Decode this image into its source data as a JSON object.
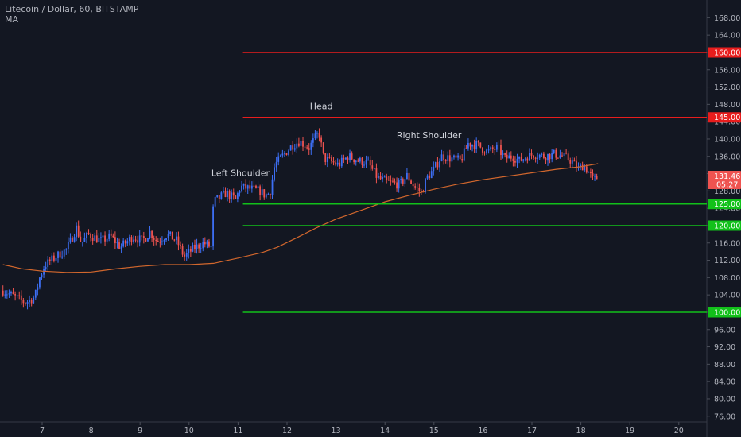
{
  "legend": {
    "symbol": "Litecoin / Dollar, 60, BITSTAMP",
    "indicator": "MA"
  },
  "chart_data": {
    "type": "candlestick",
    "ylim": [
      74,
      171
    ],
    "y_ticks": [
      "76.00",
      "80.00",
      "84.00",
      "88.00",
      "92.00",
      "96.00",
      "100.00",
      "104.00",
      "108.00",
      "112.00",
      "116.00",
      "120.00",
      "124.00",
      "128.00",
      "132.00",
      "136.00",
      "140.00",
      "144.00",
      "148.00",
      "152.00",
      "156.00",
      "160.00",
      "164.00",
      "168.00"
    ],
    "x_days": [
      7,
      8,
      9,
      10,
      11,
      12,
      13,
      14,
      15,
      16,
      17,
      18,
      19,
      20
    ],
    "x_ticks": [
      "7",
      "8",
      "9",
      "10",
      "11",
      "12",
      "13",
      "14",
      "15",
      "16",
      "17",
      "18",
      "19",
      "20"
    ],
    "x_range": [
      6.2,
      20.45
    ],
    "price_path": [
      [
        6.2,
        105
      ],
      [
        6.45,
        103.5
      ],
      [
        6.65,
        102.2
      ],
      [
        6.85,
        103.5
      ],
      [
        6.95,
        108
      ],
      [
        7.05,
        110.8
      ],
      [
        7.3,
        113
      ],
      [
        7.5,
        114.5
      ],
      [
        7.7,
        119.5
      ],
      [
        7.8,
        116
      ],
      [
        7.95,
        118
      ],
      [
        8.2,
        116.5
      ],
      [
        8.4,
        117.5
      ],
      [
        8.6,
        115
      ],
      [
        8.85,
        117.5
      ],
      [
        9.05,
        116.5
      ],
      [
        9.2,
        118.5
      ],
      [
        9.35,
        116.3
      ],
      [
        9.55,
        118
      ],
      [
        9.75,
        116.5
      ],
      [
        9.9,
        112.8
      ],
      [
        10.1,
        114.8
      ],
      [
        10.3,
        116
      ],
      [
        10.45,
        115
      ],
      [
        10.5,
        125.5
      ],
      [
        10.75,
        127.5
      ],
      [
        10.95,
        126
      ],
      [
        11.05,
        129
      ],
      [
        11.25,
        128.5
      ],
      [
        11.45,
        128
      ],
      [
        11.55,
        127
      ],
      [
        11.65,
        127.5
      ],
      [
        11.75,
        134
      ],
      [
        11.9,
        136
      ],
      [
        12.1,
        138.5
      ],
      [
        12.25,
        139.5
      ],
      [
        12.45,
        138
      ],
      [
        12.65,
        141.5
      ],
      [
        12.75,
        135.5
      ],
      [
        12.85,
        135
      ],
      [
        13.05,
        134
      ],
      [
        13.25,
        136
      ],
      [
        13.45,
        135
      ],
      [
        13.65,
        134.5
      ],
      [
        13.85,
        131
      ],
      [
        14.05,
        130
      ],
      [
        14.3,
        129.5
      ],
      [
        14.45,
        131.5
      ],
      [
        14.6,
        129
      ],
      [
        14.75,
        127.5
      ],
      [
        14.85,
        131
      ],
      [
        15.0,
        133
      ],
      [
        15.15,
        136
      ],
      [
        15.35,
        135.5
      ],
      [
        15.55,
        135
      ],
      [
        15.7,
        139
      ],
      [
        15.9,
        138.5
      ],
      [
        16.1,
        137
      ],
      [
        16.3,
        138
      ],
      [
        16.45,
        135.5
      ],
      [
        16.6,
        136
      ],
      [
        16.75,
        135
      ],
      [
        16.9,
        136
      ],
      [
        17.05,
        136.5
      ],
      [
        17.25,
        136
      ],
      [
        17.45,
        136.5
      ],
      [
        17.65,
        136
      ],
      [
        17.8,
        135
      ],
      [
        17.95,
        133
      ],
      [
        18.05,
        134
      ],
      [
        18.15,
        132.5
      ],
      [
        18.25,
        130.5
      ],
      [
        18.35,
        131.2
      ]
    ],
    "ma_path": [
      [
        6.2,
        111
      ],
      [
        6.6,
        110
      ],
      [
        7.0,
        109.5
      ],
      [
        7.5,
        109.2
      ],
      [
        8.0,
        109.3
      ],
      [
        8.5,
        110
      ],
      [
        9.0,
        110.6
      ],
      [
        9.5,
        111
      ],
      [
        10.0,
        111
      ],
      [
        10.5,
        111.3
      ],
      [
        11.0,
        112.5
      ],
      [
        11.5,
        113.8
      ],
      [
        11.8,
        115
      ],
      [
        12.2,
        117.2
      ],
      [
        12.6,
        119.5
      ],
      [
        13.0,
        121.5
      ],
      [
        13.5,
        123.5
      ],
      [
        14.0,
        125.5
      ],
      [
        14.5,
        127
      ],
      [
        15.0,
        128.4
      ],
      [
        15.5,
        129.6
      ],
      [
        16.0,
        130.6
      ],
      [
        16.5,
        131.4
      ],
      [
        17.0,
        132.2
      ],
      [
        17.5,
        133
      ],
      [
        18.0,
        133.6
      ],
      [
        18.35,
        134.3
      ]
    ],
    "horizontal_lines": [
      {
        "price": 160,
        "label": "160.00",
        "color": "#e81d1d",
        "x_start": 11.1
      },
      {
        "price": 145,
        "label": "145.00",
        "color": "#e81d1d",
        "x_start": 11.1
      },
      {
        "price": 125,
        "label": "125.00",
        "color": "#12c11a",
        "x_start": 11.1
      },
      {
        "price": 120,
        "label": "120.00",
        "color": "#12c11a",
        "x_start": 11.1
      },
      {
        "price": 100,
        "label": "100.00",
        "color": "#12c11a",
        "x_start": 11.1
      }
    ],
    "current_price": {
      "price": 131.46,
      "label": "131.46",
      "countdown": "05:27",
      "color": "#ef5350"
    },
    "annotations": [
      {
        "text": "Head",
        "x": 12.7,
        "price": 146.9
      },
      {
        "text": "Right Shoulder",
        "x": 14.9,
        "price": 140.2
      },
      {
        "text": "Left Shoulder",
        "x": 11.05,
        "price": 131.5
      }
    ],
    "colors": {
      "up": "#3d6ff5",
      "down": "#ef5350",
      "ma": "#d2672d",
      "background": "#131722",
      "axis_text": "#b2b5be"
    }
  }
}
